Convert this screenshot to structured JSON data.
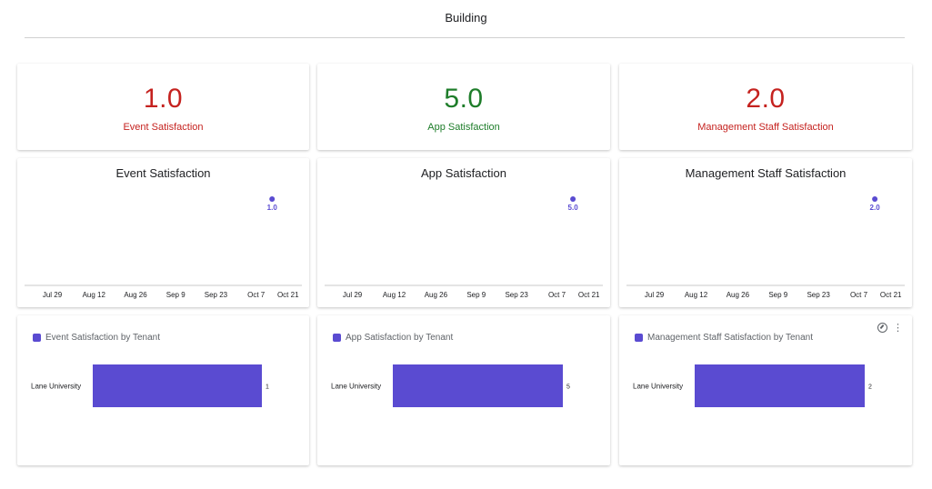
{
  "header": {
    "title": "Building"
  },
  "kpis": [
    {
      "value": "1.0",
      "label": "Event Satisfaction",
      "color": "#c5221f"
    },
    {
      "value": "5.0",
      "label": "App Satisfaction",
      "color": "#1e7d2a"
    },
    {
      "value": "2.0",
      "label": "Management Staff Satisfaction",
      "color": "#c5221f"
    }
  ],
  "accent": "#5a4bd1",
  "chart_data": [
    {
      "type": "scatter",
      "title": "Event Satisfaction",
      "x_ticks": [
        "Jul 29",
        "Aug 12",
        "Aug 26",
        "Sep 9",
        "Sep 23",
        "Oct 7",
        "Oct 21"
      ],
      "points": [
        {
          "x": "Oct 14",
          "y": 1.0,
          "label": "1.0"
        }
      ]
    },
    {
      "type": "scatter",
      "title": "App Satisfaction",
      "x_ticks": [
        "Jul 29",
        "Aug 12",
        "Aug 26",
        "Sep 9",
        "Sep 23",
        "Oct 7",
        "Oct 21"
      ],
      "points": [
        {
          "x": "Oct 14",
          "y": 5.0,
          "label": "5.0"
        }
      ]
    },
    {
      "type": "scatter",
      "title": "Management Staff Satisfaction",
      "x_ticks": [
        "Jul 29",
        "Aug 12",
        "Aug 26",
        "Sep 9",
        "Sep 23",
        "Oct 7",
        "Oct 21"
      ],
      "points": [
        {
          "x": "Oct 14",
          "y": 2.0,
          "label": "2.0"
        }
      ]
    },
    {
      "type": "bar",
      "orientation": "horizontal",
      "title": "Event Satisfaction by Tenant",
      "legend": "Event Satisfaction by Tenant",
      "categories": [
        "Lane University"
      ],
      "values": [
        1
      ]
    },
    {
      "type": "bar",
      "orientation": "horizontal",
      "title": "App Satisfaction by Tenant",
      "legend": "App Satisfaction by Tenant",
      "categories": [
        "Lane University"
      ],
      "values": [
        5
      ]
    },
    {
      "type": "bar",
      "orientation": "horizontal",
      "title": "Management Staff Satisfaction by Tenant",
      "legend": "Management Staff Satisfaction by Tenant",
      "categories": [
        "Lane University"
      ],
      "values": [
        2
      ]
    }
  ],
  "card_menu": {
    "explore_icon": "compass-icon",
    "more_icon": "more-vert-icon",
    "more_glyph": "⋮"
  }
}
